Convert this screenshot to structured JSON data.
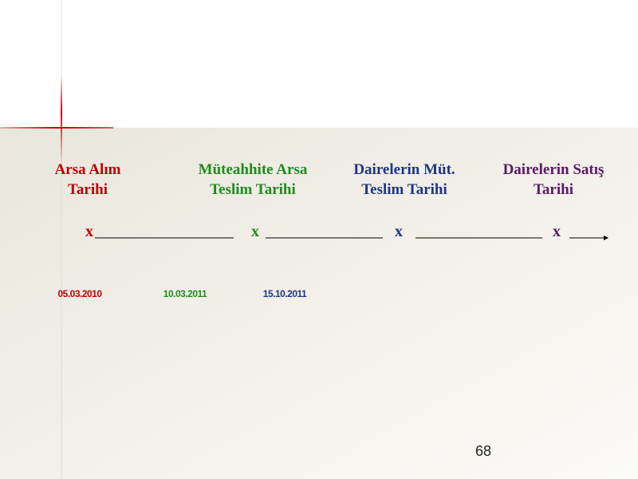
{
  "timeline": {
    "events": [
      {
        "title": [
          "Arsa Alım",
          "Tarihi"
        ],
        "marker": "x",
        "date": "05.03.2010",
        "color": "#c00000"
      },
      {
        "title": [
          "Müteahhite Arsa",
          "Teslim Tarihi"
        ],
        "marker": "x",
        "date": "10.03.2011",
        "color": "#1e8c1e"
      },
      {
        "title": [
          "Dairelerin  Müt.",
          "Teslim Tarihi"
        ],
        "marker": "x",
        "date": "15.10.2011",
        "color": "#1f3585"
      },
      {
        "title": [
          "Dairelerin Satış",
          "Tarihi"
        ],
        "marker": "x",
        "color": "#5b1a66"
      }
    ]
  },
  "page_number": "68"
}
